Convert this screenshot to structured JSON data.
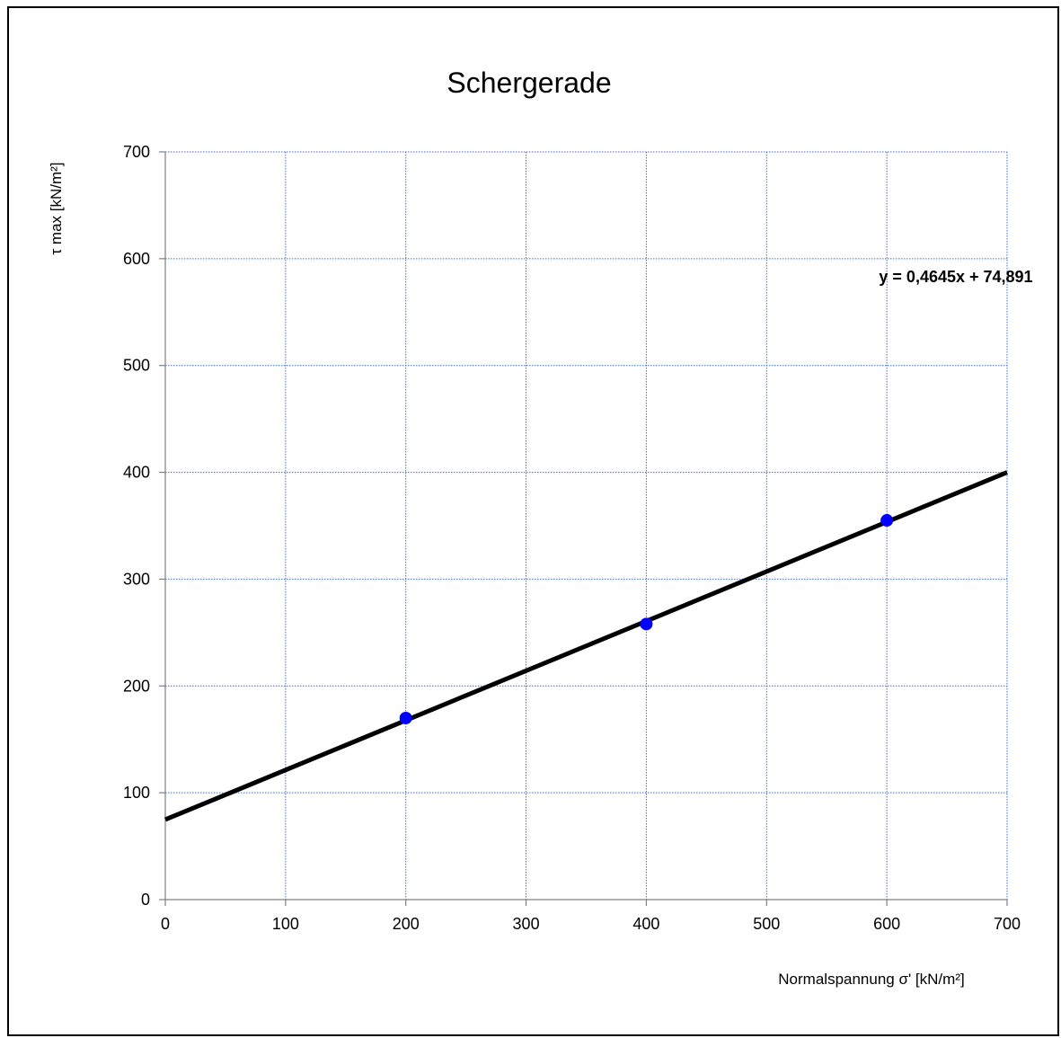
{
  "chart_data": {
    "type": "scatter",
    "title": "Schergerade",
    "xlabel": "Normalspannung σ' [kN/m²]",
    "ylabel": "τ max [kN/m²]",
    "xlim": [
      0,
      700
    ],
    "ylim": [
      0,
      700
    ],
    "x_ticks": [
      0,
      100,
      200,
      300,
      400,
      500,
      600,
      700
    ],
    "y_ticks": [
      0,
      100,
      200,
      300,
      400,
      500,
      600,
      700
    ],
    "x_tick_labels": [
      "0",
      "100",
      "200",
      "300",
      "400",
      "500",
      "600",
      "700"
    ],
    "y_tick_labels": [
      "0",
      "100",
      "200",
      "300",
      "400",
      "500",
      "600",
      "700"
    ],
    "grid": true,
    "series": [
      {
        "points": [
          {
            "x": 200,
            "y": 170
          },
          {
            "x": 400,
            "y": 258
          },
          {
            "x": 600,
            "y": 355
          }
        ],
        "color": "#0000ff"
      }
    ],
    "trendline": {
      "slope": 0.4645,
      "intercept": 74.891,
      "label": "y = 0,4645x + 74,891",
      "color": "#000000"
    },
    "colors": {
      "grid": "#3b6fd8",
      "axis": "#808080",
      "marker": "#0000ff",
      "trendline": "#000000"
    }
  }
}
